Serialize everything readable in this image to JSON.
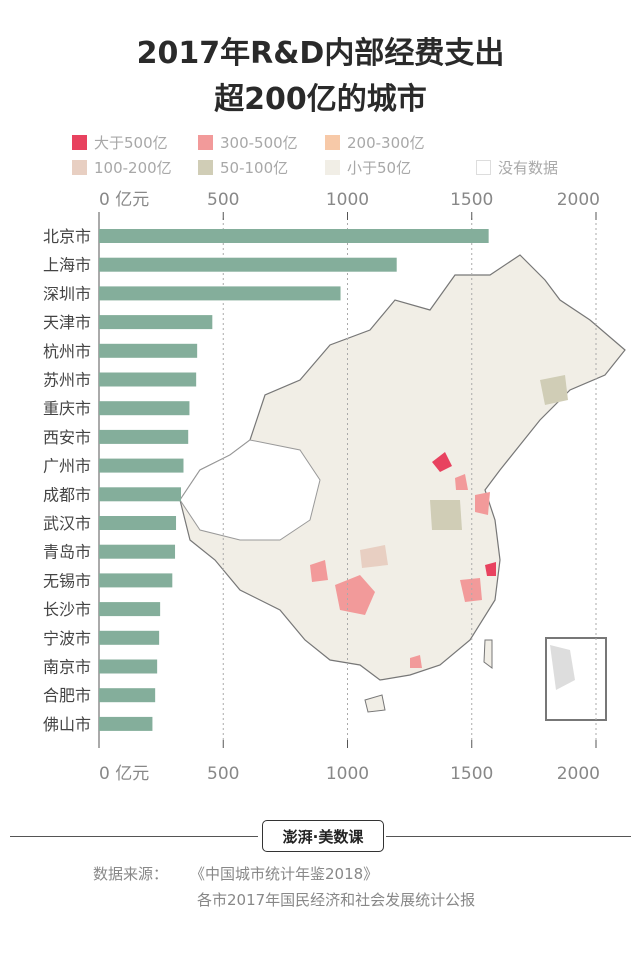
{
  "title": {
    "line1": "2017年R&D内部经费支出",
    "line2": "超200亿的城市"
  },
  "legend": [
    {
      "label": "大于500亿",
      "color": "#e8425f"
    },
    {
      "label": "300-500亿",
      "color": "#f29a9a"
    },
    {
      "label": "200-300亿",
      "color": "#f7c9a8"
    },
    {
      "label": "100-200亿",
      "color": "#e8cfc2"
    },
    {
      "label": "50-100亿",
      "color": "#d0cdb6"
    },
    {
      "label": "小于50亿",
      "color": "#f1eee6"
    },
    {
      "label": "没有数据",
      "color": "#ffffff"
    }
  ],
  "chart_data": {
    "type": "bar",
    "orientation": "horizontal",
    "categories": [
      "北京市",
      "上海市",
      "深圳市",
      "天津市",
      "杭州市",
      "苏州市",
      "重庆市",
      "西安市",
      "广州市",
      "成都市",
      "武汉市",
      "青岛市",
      "无锡市",
      "长沙市",
      "宁波市",
      "南京市",
      "合肥市",
      "佛山市"
    ],
    "values": [
      1568,
      1198,
      972,
      456,
      395,
      391,
      364,
      359,
      340,
      330,
      310,
      306,
      295,
      246,
      242,
      234,
      226,
      215
    ],
    "xlim": [
      0,
      2000
    ],
    "x_ticks": [
      "0 亿元",
      "500",
      "1000",
      "1500",
      "2000"
    ],
    "x_tick_values": [
      0,
      500,
      1000,
      1500,
      2000
    ],
    "grid": true,
    "bar_color": "#84ae9b"
  },
  "logo": {
    "text": "澎湃·美数课"
  },
  "source": {
    "label": "数据来源：",
    "line1": "《中国城市统计年鉴2018》",
    "line2": "各市2017年国民经济和社会发展统计公报"
  }
}
